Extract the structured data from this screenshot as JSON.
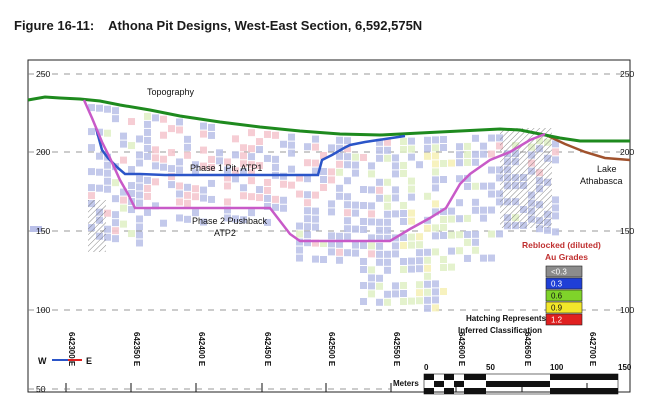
{
  "title": {
    "figure_number": "Figure 16-11:",
    "caption": "Athona Pit Designs, West-East Section, 6,592,575N"
  },
  "elevations": [
    "250",
    "200",
    "150",
    "100",
    "50"
  ],
  "eastings": [
    "642300 E",
    "642350 E",
    "642400 E",
    "642450 E",
    "642500 E",
    "642550 E",
    "642600 E",
    "642650 E",
    "642700 E"
  ],
  "compass": {
    "west": "W",
    "east": "E"
  },
  "labels": {
    "topography": "Topography",
    "phase1": "Phase 1 Pit, ATP1",
    "phase2_line1": "Phase 2 Pushback",
    "phase2_line2": "ATP2",
    "lake_line1": "Lake",
    "lake_line2": "Athabasca"
  },
  "legend": {
    "title_line1": "Reblocked (diluted)",
    "title_line2": "Au Grades",
    "grades": [
      {
        "label": "<0.3",
        "color": "#8c8c8c"
      },
      {
        "label": "0.3",
        "color": "#1f3fd6"
      },
      {
        "label": "0.6",
        "color": "#7fd32a"
      },
      {
        "label": "0.9",
        "color": "#f2e62a"
      },
      {
        "label": "1.2",
        "color": "#e02020"
      }
    ],
    "hatch_line1": "Hatching Represents",
    "hatch_line2": "Inferred Classification"
  },
  "scale_bar": {
    "unit": "Meters",
    "ticks": [
      "0",
      "50",
      "100",
      "150"
    ]
  },
  "colors": {
    "topography": "#1e8a1e",
    "phase1": "#2b55c8",
    "phase2": "#c85ac8",
    "lake_shore": "#a0522d",
    "block_low": "#b9bfe8",
    "block_pink": "#f4c4cc",
    "block_green": "#dff0c4",
    "block_yellow": "#f6f0b4"
  }
}
